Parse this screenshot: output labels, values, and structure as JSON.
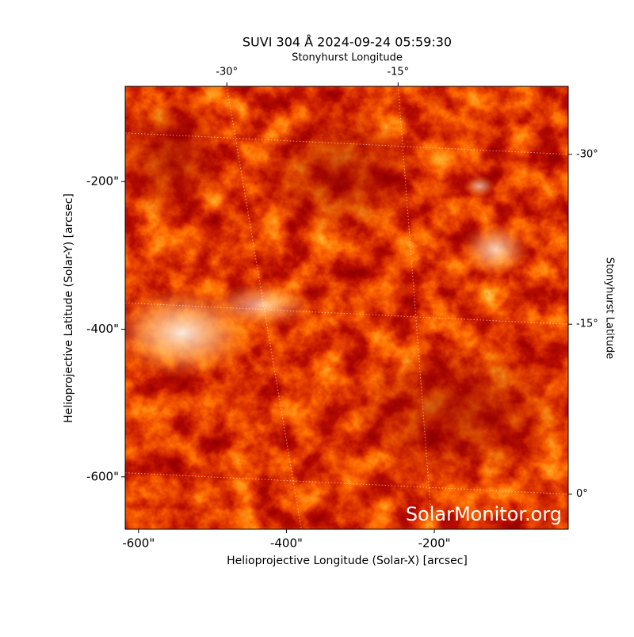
{
  "chart_data": {
    "type": "image",
    "title": "SUVI 304 Å 2024-09-24 05:59:30",
    "xlabel": "Helioprojective Longitude (Solar-X) [arcsec]",
    "ylabel": "Helioprojective Latitude (Solar-Y) [arcsec]",
    "x2label": "Stonyhurst Longitude",
    "y2label": "Stonyhurst Latitude",
    "watermark": "SolarMonitor.org",
    "xlim": [
      -618,
      -19
    ],
    "ylim": [
      -671,
      -71
    ],
    "xticks": [
      {
        "value": -600,
        "label": "-600\""
      },
      {
        "value": -400,
        "label": "-400\""
      },
      {
        "value": -200,
        "label": "-200\""
      }
    ],
    "yticks": [
      {
        "value": -200,
        "label": "-200\""
      },
      {
        "value": -400,
        "label": "-400\""
      },
      {
        "value": -600,
        "label": "-600\""
      }
    ],
    "x2lim": [
      -38.9,
      -0.1
    ],
    "x2ticks": [
      {
        "value": -30,
        "label": "-30°"
      },
      {
        "value": -15,
        "label": "-15°"
      }
    ],
    "y2lim": [
      3.1,
      -36
    ],
    "y2ticks": [
      {
        "value": 0,
        "label": "0°"
      },
      {
        "value": -15,
        "label": "-15°"
      },
      {
        "value": -30,
        "label": "-30°"
      }
    ],
    "grid": true
  }
}
